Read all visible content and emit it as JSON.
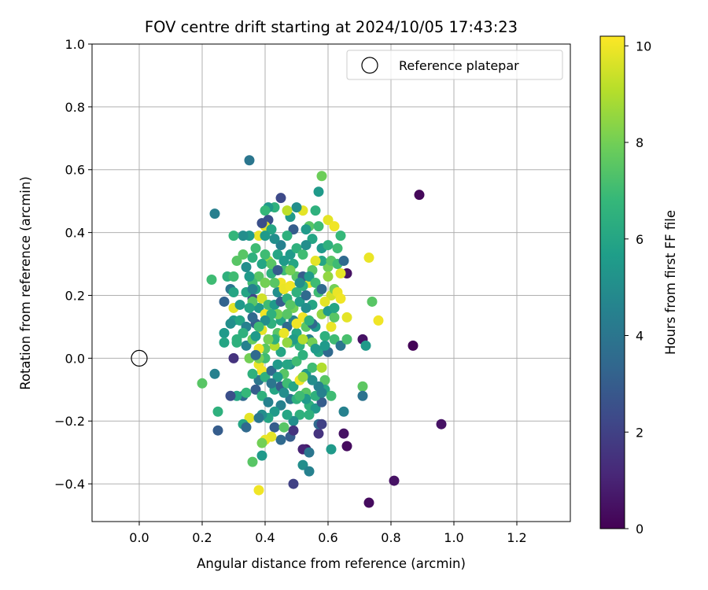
{
  "chart_data": {
    "type": "scatter",
    "title": "FOV centre drift starting at 2024/10/05 17:43:23",
    "xlabel": "Angular distance from reference (arcmin)",
    "ylabel": "Rotation from reference (arcmin)",
    "xlim": [
      -0.15,
      1.37
    ],
    "ylim": [
      -0.52,
      1.0
    ],
    "xticks": [
      0.0,
      0.2,
      0.4,
      0.6,
      0.8,
      1.0,
      1.2
    ],
    "xtick_labels": [
      "0.0",
      "0.2",
      "0.4",
      "0.6",
      "0.8",
      "1.0",
      "1.2"
    ],
    "yticks": [
      -0.4,
      -0.2,
      0.0,
      0.2,
      0.4,
      0.6,
      0.8,
      1.0
    ],
    "ytick_labels": [
      "−0.4",
      "−0.2",
      "0.0",
      "0.2",
      "0.4",
      "0.6",
      "0.8",
      "1.0"
    ],
    "grid": true,
    "legend": {
      "position": "top-right",
      "entries": [
        {
          "label": "Reference platepar",
          "marker": "open-circle"
        }
      ]
    },
    "reference_point": {
      "x": 0.0,
      "y": 0.0
    },
    "colorbar": {
      "label": "Hours from first FF file",
      "colormap": "viridis",
      "range": [
        0,
        10.2
      ],
      "ticks": [
        0,
        2,
        4,
        6,
        8,
        10
      ],
      "tick_labels": [
        "0",
        "2",
        "4",
        "6",
        "8",
        "10"
      ]
    },
    "colormap_stops": [
      "#440154",
      "#482878",
      "#3e4989",
      "#31688e",
      "#26828e",
      "#1f9e89",
      "#35b779",
      "#6ece58",
      "#b5de2b",
      "#fde725"
    ],
    "points": [
      [
        0.89,
        0.52,
        0.2
      ],
      [
        0.96,
        -0.21,
        0.5
      ],
      [
        0.81,
        -0.39,
        0.5
      ],
      [
        0.73,
        -0.46,
        0.3
      ],
      [
        0.87,
        0.04,
        0.1
      ],
      [
        0.71,
        0.06,
        0.5
      ],
      [
        0.66,
        0.27,
        0.5
      ],
      [
        0.66,
        -0.28,
        0.3
      ],
      [
        0.65,
        -0.24,
        0.5
      ],
      [
        0.53,
        -0.29,
        0.6
      ],
      [
        0.49,
        -0.4,
        2.0
      ],
      [
        0.3,
        0.0,
        1.5
      ],
      [
        0.36,
        0.19,
        2.2
      ],
      [
        0.35,
        0.63,
        4.0
      ],
      [
        0.24,
        0.46,
        4.4
      ],
      [
        0.25,
        -0.23,
        3.0
      ],
      [
        0.24,
        -0.05,
        4.5
      ],
      [
        0.2,
        -0.08,
        7.5
      ],
      [
        0.25,
        -0.17,
        6.5
      ],
      [
        0.23,
        0.25,
        7.0
      ],
      [
        0.76,
        0.12,
        10.0
      ],
      [
        0.74,
        0.18,
        7.5
      ],
      [
        0.73,
        0.32,
        9.9
      ],
      [
        0.71,
        -0.09,
        7.6
      ],
      [
        0.71,
        -0.12,
        3.9
      ],
      [
        0.72,
        0.04,
        5.5
      ],
      [
        0.65,
        -0.17,
        4.5
      ],
      [
        0.61,
        -0.29,
        5.5
      ],
      [
        0.66,
        0.13,
        9.8
      ],
      [
        0.63,
        0.35,
        7.0
      ],
      [
        0.64,
        0.39,
        6.8
      ],
      [
        0.6,
        0.44,
        9.8
      ],
      [
        0.62,
        0.42,
        10.0
      ],
      [
        0.58,
        0.58,
        7.9
      ],
      [
        0.57,
        0.53,
        5.5
      ],
      [
        0.56,
        0.47,
        6.5
      ],
      [
        0.54,
        0.42,
        7.5
      ],
      [
        0.53,
        0.41,
        5.5
      ],
      [
        0.52,
        0.47,
        9.8
      ],
      [
        0.5,
        0.48,
        5.0
      ],
      [
        0.48,
        0.45,
        5.5
      ],
      [
        0.47,
        0.47,
        9.2
      ],
      [
        0.45,
        0.51,
        2.3
      ],
      [
        0.43,
        0.48,
        6.5
      ],
      [
        0.41,
        0.48,
        5.5
      ],
      [
        0.4,
        0.47,
        6.8
      ],
      [
        0.41,
        0.44,
        2.5
      ],
      [
        0.4,
        0.42,
        9.8
      ],
      [
        0.38,
        0.39,
        9.9
      ],
      [
        0.35,
        0.39,
        5.5
      ],
      [
        0.33,
        0.39,
        5.0
      ],
      [
        0.3,
        0.39,
        6.7
      ],
      [
        0.31,
        0.31,
        7.5
      ],
      [
        0.28,
        0.26,
        6.5
      ],
      [
        0.27,
        0.18,
        3.2
      ],
      [
        0.29,
        0.22,
        4.0
      ],
      [
        0.3,
        0.26,
        7.0
      ],
      [
        0.3,
        0.16,
        9.8
      ],
      [
        0.27,
        0.08,
        5.5
      ],
      [
        0.27,
        0.05,
        6.0
      ],
      [
        0.3,
        0.12,
        5.5
      ],
      [
        0.32,
        0.12,
        6.0
      ],
      [
        0.31,
        0.06,
        6.5
      ],
      [
        0.34,
        0.04,
        4.5
      ],
      [
        0.36,
        0.06,
        7.8
      ],
      [
        0.37,
        0.11,
        3.0
      ],
      [
        0.39,
        0.09,
        9.8
      ],
      [
        0.38,
        0.16,
        5.5
      ],
      [
        0.4,
        0.14,
        10.0
      ],
      [
        0.42,
        0.11,
        6.5
      ],
      [
        0.44,
        0.08,
        7.5
      ],
      [
        0.45,
        0.12,
        6.0
      ],
      [
        0.47,
        0.1,
        3.5
      ],
      [
        0.48,
        0.05,
        7.0
      ],
      [
        0.5,
        0.08,
        6.0
      ],
      [
        0.52,
        0.13,
        10.0
      ],
      [
        0.53,
        0.1,
        7.5
      ],
      [
        0.54,
        0.06,
        4.5
      ],
      [
        0.56,
        0.1,
        5.5
      ],
      [
        0.58,
        0.14,
        8.5
      ],
      [
        0.59,
        0.07,
        6.5
      ],
      [
        0.61,
        0.1,
        9.9
      ],
      [
        0.62,
        0.06,
        7.0
      ],
      [
        0.64,
        0.04,
        4.0
      ],
      [
        0.66,
        0.06,
        7.2
      ],
      [
        0.61,
        0.2,
        9.5
      ],
      [
        0.62,
        0.22,
        8.0
      ],
      [
        0.63,
        0.21,
        9.9
      ],
      [
        0.64,
        0.27,
        9.8
      ],
      [
        0.6,
        0.29,
        8.0
      ],
      [
        0.58,
        0.31,
        6.0
      ],
      [
        0.56,
        0.31,
        9.8
      ],
      [
        0.55,
        0.28,
        7.5
      ],
      [
        0.54,
        0.24,
        9.9
      ],
      [
        0.52,
        0.23,
        6.5
      ],
      [
        0.5,
        0.26,
        7.5
      ],
      [
        0.49,
        0.3,
        6.0
      ],
      [
        0.48,
        0.33,
        5.5
      ],
      [
        0.46,
        0.28,
        7.0
      ],
      [
        0.45,
        0.24,
        10.0
      ],
      [
        0.44,
        0.21,
        5.0
      ],
      [
        0.43,
        0.24,
        7.5
      ],
      [
        0.42,
        0.27,
        6.5
      ],
      [
        0.41,
        0.31,
        8.5
      ],
      [
        0.4,
        0.33,
        7.0
      ],
      [
        0.39,
        0.3,
        6.0
      ],
      [
        0.38,
        0.26,
        7.5
      ],
      [
        0.37,
        0.22,
        6.0
      ],
      [
        0.36,
        0.24,
        7.0
      ],
      [
        0.35,
        0.26,
        5.5
      ],
      [
        0.34,
        0.21,
        6.0
      ],
      [
        0.36,
        0.18,
        7.5
      ],
      [
        0.39,
        0.19,
        9.5
      ],
      [
        0.41,
        0.17,
        7.0
      ],
      [
        0.43,
        0.17,
        5.5
      ],
      [
        0.45,
        0.18,
        3.0
      ],
      [
        0.47,
        0.19,
        6.5
      ],
      [
        0.49,
        0.16,
        8.0
      ],
      [
        0.51,
        0.18,
        5.5
      ],
      [
        0.53,
        0.2,
        3.5
      ],
      [
        0.55,
        0.17,
        6.0
      ],
      [
        0.57,
        0.21,
        7.0
      ],
      [
        0.59,
        0.18,
        9.8
      ],
      [
        0.6,
        0.15,
        5.5
      ],
      [
        0.62,
        0.13,
        7.5
      ],
      [
        0.58,
        0.35,
        5.5
      ],
      [
        0.6,
        0.36,
        6.5
      ],
      [
        0.57,
        0.42,
        7.0
      ],
      [
        0.55,
        0.38,
        6.0
      ],
      [
        0.49,
        0.41,
        3.0
      ],
      [
        0.47,
        0.39,
        6.5
      ],
      [
        0.45,
        0.36,
        4.5
      ],
      [
        0.43,
        0.38,
        5.0
      ],
      [
        0.42,
        0.41,
        6.0
      ],
      [
        0.4,
        0.39,
        5.5
      ],
      [
        0.39,
        0.43,
        2.5
      ],
      [
        0.37,
        0.35,
        7.0
      ],
      [
        0.36,
        0.32,
        6.5
      ],
      [
        0.34,
        0.29,
        5.0
      ],
      [
        0.33,
        0.33,
        7.5
      ],
      [
        0.42,
        0.3,
        7.5
      ],
      [
        0.44,
        0.33,
        6.0
      ],
      [
        0.46,
        0.31,
        5.5
      ],
      [
        0.48,
        0.28,
        8.0
      ],
      [
        0.5,
        0.35,
        6.5
      ],
      [
        0.52,
        0.33,
        7.0
      ],
      [
        0.53,
        0.36,
        5.0
      ],
      [
        0.46,
        0.22,
        9.9
      ],
      [
        0.48,
        0.23,
        10.0
      ],
      [
        0.5,
        0.21,
        6.5
      ],
      [
        0.52,
        0.26,
        3.0
      ],
      [
        0.44,
        0.14,
        8.0
      ],
      [
        0.42,
        0.14,
        6.5
      ],
      [
        0.4,
        0.12,
        5.0
      ],
      [
        0.38,
        0.1,
        7.0
      ],
      [
        0.36,
        0.13,
        3.5
      ],
      [
        0.34,
        0.1,
        4.5
      ],
      [
        0.32,
        0.17,
        5.5
      ],
      [
        0.3,
        0.21,
        6.0
      ],
      [
        0.33,
        0.08,
        6.5
      ],
      [
        0.35,
        0.0,
        8.0
      ],
      [
        0.38,
        -0.02,
        9.9
      ],
      [
        0.39,
        -0.04,
        10.0
      ],
      [
        0.38,
        -0.07,
        4.0
      ],
      [
        0.4,
        -0.06,
        6.5
      ],
      [
        0.42,
        -0.04,
        3.5
      ],
      [
        0.44,
        -0.02,
        5.5
      ],
      [
        0.46,
        -0.05,
        7.5
      ],
      [
        0.48,
        -0.02,
        5.0
      ],
      [
        0.5,
        -0.01,
        7.0
      ],
      [
        0.52,
        0.01,
        6.5
      ],
      [
        0.53,
        -0.05,
        5.5
      ],
      [
        0.55,
        -0.03,
        7.0
      ],
      [
        0.57,
        0.02,
        6.0
      ],
      [
        0.55,
        0.05,
        8.0
      ],
      [
        0.51,
        0.04,
        6.5
      ],
      [
        0.49,
        0.06,
        5.5
      ],
      [
        0.47,
        0.05,
        8.5
      ],
      [
        0.45,
        0.02,
        6.0
      ],
      [
        0.43,
        0.04,
        9.0
      ],
      [
        0.4,
        0.03,
        7.5
      ],
      [
        0.38,
        0.03,
        10.0
      ],
      [
        0.36,
        -0.05,
        6.5
      ],
      [
        0.33,
        -0.12,
        3.5
      ],
      [
        0.31,
        -0.12,
        6.0
      ],
      [
        0.29,
        -0.12,
        2.5
      ],
      [
        0.34,
        -0.11,
        6.8
      ],
      [
        0.37,
        -0.1,
        3.0
      ],
      [
        0.39,
        -0.12,
        6.5
      ],
      [
        0.41,
        -0.14,
        4.5
      ],
      [
        0.43,
        -0.1,
        6.0
      ],
      [
        0.45,
        -0.09,
        3.0
      ],
      [
        0.47,
        -0.08,
        7.0
      ],
      [
        0.49,
        -0.09,
        6.0
      ],
      [
        0.51,
        -0.07,
        10.0
      ],
      [
        0.53,
        -0.11,
        7.5
      ],
      [
        0.54,
        -0.15,
        6.5
      ],
      [
        0.56,
        -0.16,
        5.5
      ],
      [
        0.58,
        -0.14,
        3.0
      ],
      [
        0.59,
        -0.07,
        7.5
      ],
      [
        0.59,
        -0.1,
        6.0
      ],
      [
        0.57,
        -0.09,
        4.5
      ],
      [
        0.55,
        -0.07,
        5.0
      ],
      [
        0.53,
        -0.13,
        5.5
      ],
      [
        0.51,
        -0.18,
        6.5
      ],
      [
        0.49,
        -0.2,
        5.0
      ],
      [
        0.47,
        -0.18,
        6.0
      ],
      [
        0.45,
        -0.15,
        4.5
      ],
      [
        0.43,
        -0.17,
        5.5
      ],
      [
        0.41,
        -0.19,
        6.0
      ],
      [
        0.39,
        -0.18,
        5.0
      ],
      [
        0.35,
        -0.19,
        9.8
      ],
      [
        0.33,
        -0.21,
        6.0
      ],
      [
        0.34,
        -0.22,
        3.5
      ],
      [
        0.38,
        -0.19,
        4.0
      ],
      [
        0.43,
        -0.22,
        3.0
      ],
      [
        0.45,
        -0.26,
        3.5
      ],
      [
        0.48,
        -0.25,
        3.0
      ],
      [
        0.49,
        -0.23,
        1.5
      ],
      [
        0.46,
        -0.22,
        7.5
      ],
      [
        0.42,
        -0.25,
        9.8
      ],
      [
        0.4,
        -0.26,
        9.9
      ],
      [
        0.39,
        -0.27,
        8.0
      ],
      [
        0.36,
        -0.33,
        7.5
      ],
      [
        0.39,
        -0.31,
        5.5
      ],
      [
        0.38,
        -0.42,
        10.0
      ],
      [
        0.52,
        -0.29,
        1.0
      ],
      [
        0.52,
        -0.34,
        5.0
      ],
      [
        0.54,
        -0.3,
        4.0
      ],
      [
        0.54,
        -0.36,
        4.5
      ],
      [
        0.57,
        -0.24,
        1.5
      ],
      [
        0.57,
        -0.21,
        3.5
      ],
      [
        0.58,
        -0.21,
        2.0
      ],
      [
        0.61,
        -0.12,
        7.0
      ],
      [
        0.56,
        -0.12,
        6.5
      ],
      [
        0.52,
        -0.06,
        8.5
      ],
      [
        0.6,
        0.02,
        3.5
      ],
      [
        0.59,
        0.04,
        5.5
      ],
      [
        0.48,
        -0.13,
        4.0
      ],
      [
        0.46,
        -0.11,
        5.0
      ],
      [
        0.44,
        0.28,
        3.0
      ],
      [
        0.36,
        0.22,
        4.5
      ],
      [
        0.4,
        0.24,
        8.0
      ],
      [
        0.51,
        0.24,
        5.0
      ],
      [
        0.54,
        0.26,
        5.5
      ],
      [
        0.56,
        0.24,
        7.0
      ],
      [
        0.53,
        0.16,
        5.0
      ],
      [
        0.49,
        0.12,
        4.5
      ],
      [
        0.47,
        0.14,
        7.5
      ],
      [
        0.43,
        0.06,
        6.5
      ],
      [
        0.41,
        0.06,
        8.0
      ],
      [
        0.37,
        0.07,
        5.5
      ],
      [
        0.31,
        0.05,
        6.5
      ],
      [
        0.29,
        0.11,
        5.0
      ],
      [
        0.35,
        0.16,
        6.0
      ],
      [
        0.61,
        0.31,
        7.5
      ],
      [
        0.63,
        0.3,
        7.0
      ],
      [
        0.65,
        0.31,
        3.5
      ],
      [
        0.62,
        0.16,
        6.0
      ],
      [
        0.64,
        0.19,
        10.0
      ],
      [
        0.6,
        0.26,
        8.5
      ],
      [
        0.58,
        0.22,
        3.5
      ],
      [
        0.55,
        0.11,
        3.5
      ],
      [
        0.58,
        -0.03,
        9.0
      ],
      [
        0.56,
        0.03,
        5.5
      ],
      [
        0.58,
        -0.11,
        4.5
      ],
      [
        0.54,
        -0.18,
        6.5
      ],
      [
        0.5,
        -0.13,
        6.5
      ],
      [
        0.51,
        -0.12,
        7.0
      ],
      [
        0.47,
        -0.02,
        6.0
      ],
      [
        0.44,
        -0.06,
        5.5
      ],
      [
        0.42,
        -0.08,
        4.0
      ],
      [
        0.4,
        0.0,
        7.0
      ],
      [
        0.38,
        0.0,
        8.0
      ],
      [
        0.37,
        0.01,
        3.5
      ],
      [
        0.5,
        0.11,
        10.0
      ],
      [
        0.52,
        0.06,
        9.0
      ],
      [
        0.54,
        0.12,
        6.5
      ],
      [
        0.46,
        0.08,
        9.9
      ],
      [
        0.48,
        0.17,
        7.5
      ]
    ]
  }
}
